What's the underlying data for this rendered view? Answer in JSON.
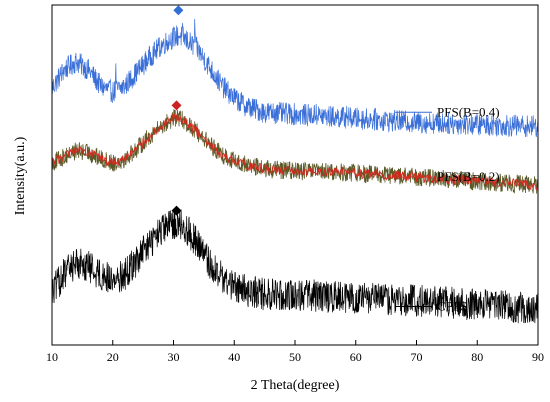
{
  "chart_data": {
    "type": "line",
    "title": "",
    "xlabel": "2 Theta(degree)",
    "ylabel": "Intensity(a.u.)",
    "xlim": [
      10,
      90
    ],
    "x_ticks": [
      "10",
      "20",
      "30",
      "40",
      "50",
      "60",
      "70",
      "80",
      "90"
    ],
    "y_ticks_labeled": false,
    "grid": false,
    "legend_placement": "right, beside each curve",
    "series": [
      {
        "name": "PFS(B=0.4)",
        "color": "#3a6fd8",
        "marker": "diamond",
        "marker_color": "#2f6fd6",
        "marker_x": 30.8,
        "points": [
          [
            10,
            0.65
          ],
          [
            12,
            0.74
          ],
          [
            14,
            0.78
          ],
          [
            16,
            0.74
          ],
          [
            18,
            0.66
          ],
          [
            20,
            0.63
          ],
          [
            22,
            0.66
          ],
          [
            24,
            0.73
          ],
          [
            26,
            0.8
          ],
          [
            28,
            0.86
          ],
          [
            30,
            0.9
          ],
          [
            31,
            0.91
          ],
          [
            32,
            0.89
          ],
          [
            34,
            0.84
          ],
          [
            36,
            0.75
          ],
          [
            38,
            0.66
          ],
          [
            40,
            0.6
          ],
          [
            42,
            0.56
          ],
          [
            45,
            0.53
          ],
          [
            50,
            0.52
          ],
          [
            55,
            0.51
          ],
          [
            60,
            0.5
          ],
          [
            70,
            0.48
          ],
          [
            80,
            0.47
          ],
          [
            90,
            0.46
          ]
        ],
        "spikes": [
          [
            20.5,
            0.8
          ],
          [
            31.5,
            1.0
          ],
          [
            33.5,
            1.02
          ],
          [
            47,
            0.62
          ],
          [
            53.5,
            0.6
          ],
          [
            58.5,
            0.59
          ]
        ]
      },
      {
        "name": "PFS(B=0.2)",
        "color": "#d62a1e",
        "trace_color": "#5a5a28",
        "marker": "diamond",
        "marker_color": "#cc2222",
        "marker_x": 30.5,
        "points": [
          [
            10,
            0.28
          ],
          [
            12,
            0.31
          ],
          [
            14,
            0.34
          ],
          [
            16,
            0.33
          ],
          [
            18,
            0.3
          ],
          [
            20,
            0.28
          ],
          [
            22,
            0.3
          ],
          [
            24,
            0.35
          ],
          [
            26,
            0.41
          ],
          [
            28,
            0.46
          ],
          [
            30,
            0.5
          ],
          [
            31,
            0.5
          ],
          [
            32,
            0.48
          ],
          [
            34,
            0.43
          ],
          [
            36,
            0.37
          ],
          [
            38,
            0.32
          ],
          [
            40,
            0.29
          ],
          [
            42,
            0.27
          ],
          [
            45,
            0.25
          ],
          [
            50,
            0.24
          ],
          [
            55,
            0.235
          ],
          [
            60,
            0.23
          ],
          [
            70,
            0.21
          ],
          [
            80,
            0.19
          ],
          [
            90,
            0.17
          ]
        ],
        "spikes": []
      },
      {
        "name": "CPFS",
        "color": "#000000",
        "marker": "diamond",
        "marker_color": "#000000",
        "marker_x": 30.5,
        "points": [
          [
            10,
            -0.36
          ],
          [
            12,
            -0.27
          ],
          [
            14,
            -0.21
          ],
          [
            16,
            -0.23
          ],
          [
            18,
            -0.27
          ],
          [
            20,
            -0.3
          ],
          [
            22,
            -0.27
          ],
          [
            24,
            -0.2
          ],
          [
            26,
            -0.12
          ],
          [
            28,
            -0.06
          ],
          [
            30,
            -0.02
          ],
          [
            31,
            -0.02
          ],
          [
            32,
            -0.04
          ],
          [
            34,
            -0.12
          ],
          [
            36,
            -0.22
          ],
          [
            38,
            -0.29
          ],
          [
            40,
            -0.33
          ],
          [
            42,
            -0.35
          ],
          [
            45,
            -0.37
          ],
          [
            50,
            -0.37
          ],
          [
            55,
            -0.38
          ],
          [
            60,
            -0.39
          ],
          [
            70,
            -0.4
          ],
          [
            80,
            -0.42
          ],
          [
            90,
            -0.44
          ]
        ],
        "spikes": []
      }
    ]
  }
}
